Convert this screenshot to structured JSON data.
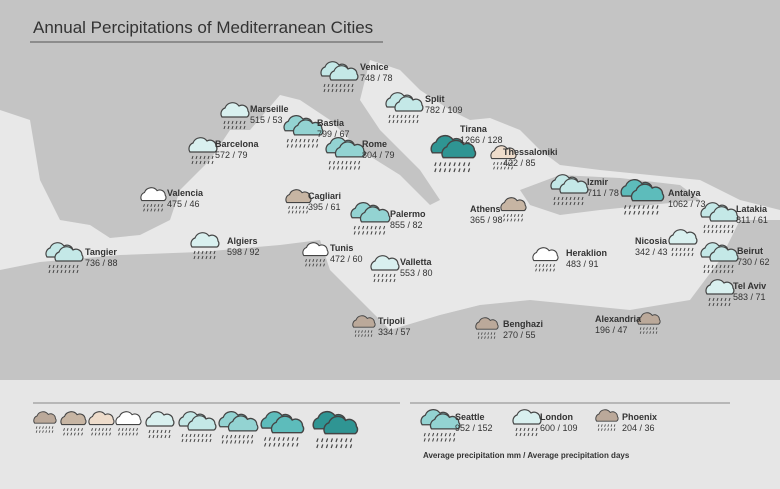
{
  "title": "Annual Percipitations of Mediterranean Cities",
  "cities": [
    {
      "name": "Venice",
      "value": "748 / 78"
    },
    {
      "name": "Split",
      "value": "782 / 109"
    },
    {
      "name": "Marseille",
      "value": "515 / 53"
    },
    {
      "name": "Bastia",
      "value": "799 / 67"
    },
    {
      "name": "Tirana",
      "value": "1266 / 128"
    },
    {
      "name": "Barcelona",
      "value": "572 / 79"
    },
    {
      "name": "Rome",
      "value": "804 / 79"
    },
    {
      "name": "Thessaloniki",
      "value": "422 / 85"
    },
    {
      "name": "Izmir",
      "value": "711 / 78"
    },
    {
      "name": "Antalya",
      "value": "1062 / 73"
    },
    {
      "name": "Latakia",
      "value": "811 / 61"
    },
    {
      "name": "Valencia",
      "value": "475 / 46"
    },
    {
      "name": "Cagliari",
      "value": "395 / 61"
    },
    {
      "name": "Palermo",
      "value": "855 / 82"
    },
    {
      "name": "Athens",
      "value": "365 / 98"
    },
    {
      "name": "Nicosia",
      "value": "342 / 43"
    },
    {
      "name": "Beirut",
      "value": "730 / 62"
    },
    {
      "name": "Algiers",
      "value": "598 / 92"
    },
    {
      "name": "Tangier",
      "value": "736 / 88"
    },
    {
      "name": "Tunis",
      "value": "472 / 60"
    },
    {
      "name": "Valletta",
      "value": "553 / 80"
    },
    {
      "name": "Heraklion",
      "value": "483 / 91"
    },
    {
      "name": "Tel Aviv",
      "value": "583 / 71"
    },
    {
      "name": "Tripoli",
      "value": "334 / 57"
    },
    {
      "name": "Benghazi",
      "value": "270 / 55"
    },
    {
      "name": "Alexandria",
      "value": "196 / 47"
    }
  ],
  "legend": {
    "cities": [
      {
        "name": "Seattle",
        "value": "952 / 152"
      },
      {
        "name": "London",
        "value": "600 / 109"
      },
      {
        "name": "Phoenix",
        "value": "204 / 36"
      }
    ],
    "caption": "Average precipitation mm / Average precipitation days"
  }
}
